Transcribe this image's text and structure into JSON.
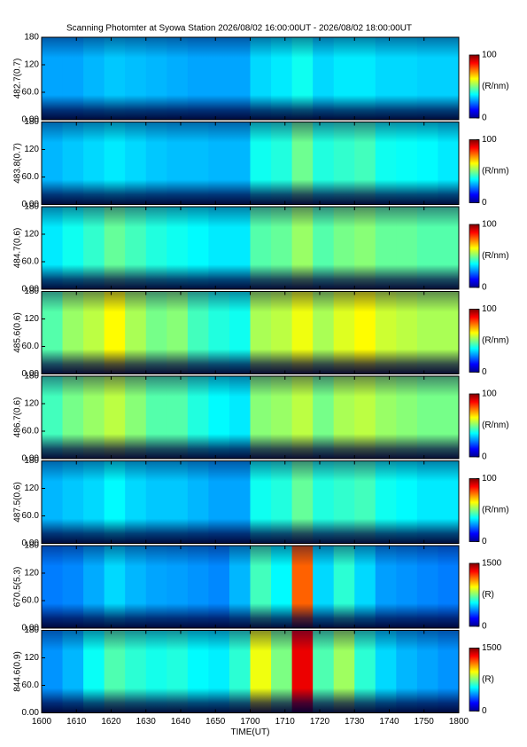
{
  "chart_data": [
    {
      "type": "heatmap",
      "title": "Scanning Photomter at Syowa Station 2026/08/02 16:00:00UT - 2026/08/02 18:00:00UT",
      "ylabel": "482.7(0.7)",
      "ylim": [
        0,
        180
      ],
      "yticks": [
        {
          "value": 0,
          "label": "0.00"
        },
        {
          "value": 60,
          "label": "60.0"
        },
        120,
        180
      ],
      "clim": [
        0,
        100
      ],
      "cticks": [
        0,
        100
      ],
      "cbar_label": "(R/nm)",
      "values": [
        22,
        22,
        24,
        26,
        25,
        24,
        23,
        22,
        22,
        22,
        28,
        30,
        34,
        28,
        30,
        30,
        28,
        28,
        27,
        27
      ]
    },
    {
      "type": "heatmap",
      "ylabel": "483.8(0.7)",
      "ylim": [
        0,
        180
      ],
      "yticks": [
        {
          "value": 0,
          "label": "0.00"
        },
        {
          "value": 60,
          "label": "60.0"
        },
        120,
        180
      ],
      "clim": [
        0,
        100
      ],
      "cticks": [
        0,
        100
      ],
      "cbar_label": "(R/nm)",
      "values": [
        24,
        26,
        28,
        30,
        28,
        26,
        25,
        25,
        24,
        24,
        34,
        36,
        45,
        36,
        38,
        40,
        34,
        33,
        32,
        30
      ]
    },
    {
      "type": "heatmap",
      "ylabel": "484.7(0.6)",
      "ylim": [
        0,
        180
      ],
      "yticks": [
        {
          "value": 0,
          "label": "0.00"
        },
        {
          "value": 60,
          "label": "60.0"
        },
        120,
        180
      ],
      "clim": [
        0,
        100
      ],
      "cticks": [
        0,
        100
      ],
      "cbar_label": "(R/nm)",
      "values": [
        30,
        34,
        38,
        44,
        40,
        36,
        34,
        32,
        30,
        30,
        42,
        44,
        50,
        42,
        46,
        48,
        44,
        44,
        42,
        42
      ]
    },
    {
      "type": "heatmap",
      "ylabel": "485.6(0.6)",
      "ylim": [
        0,
        180
      ],
      "yticks": [
        {
          "value": 0,
          "label": "0.00"
        },
        {
          "value": 60,
          "label": "60.0"
        },
        120,
        180
      ],
      "clim": [
        0,
        100
      ],
      "cticks": [
        0,
        100
      ],
      "cbar_label": "(R/nm)",
      "values": [
        42,
        50,
        54,
        62,
        52,
        46,
        48,
        40,
        36,
        34,
        52,
        54,
        60,
        52,
        58,
        62,
        56,
        54,
        52,
        52
      ]
    },
    {
      "type": "heatmap",
      "ylabel": "486.7(0.6)",
      "ylim": [
        0,
        180
      ],
      "yticks": [
        {
          "value": 0,
          "label": "0.00"
        },
        {
          "value": 60,
          "label": "60.0"
        },
        120,
        180
      ],
      "clim": [
        0,
        100
      ],
      "cticks": [
        0,
        100
      ],
      "cbar_label": "(R/nm)",
      "values": [
        40,
        46,
        50,
        54,
        48,
        42,
        42,
        36,
        32,
        30,
        48,
        50,
        54,
        46,
        52,
        54,
        50,
        48,
        46,
        46
      ]
    },
    {
      "type": "heatmap",
      "ylabel": "487.5(0.6)",
      "ylim": [
        0,
        180
      ],
      "yticks": [
        {
          "value": 0,
          "label": "0.00"
        },
        {
          "value": 60,
          "label": "60.0"
        },
        120,
        180
      ],
      "clim": [
        0,
        100
      ],
      "cticks": [
        0,
        100
      ],
      "cbar_label": "(R/nm)",
      "values": [
        24,
        26,
        28,
        32,
        28,
        26,
        26,
        24,
        22,
        22,
        34,
        36,
        44,
        36,
        38,
        40,
        34,
        32,
        30,
        30
      ]
    },
    {
      "type": "heatmap",
      "ylabel": "670.5(5.3)",
      "ylim": [
        0,
        180
      ],
      "yticks": [
        {
          "value": 0,
          "label": "0.00"
        },
        {
          "value": 60,
          "label": "60.0"
        },
        120,
        180
      ],
      "clim": [
        0,
        1500
      ],
      "cticks": [
        0,
        1500
      ],
      "cbar_label": "(R)",
      "values": [
        260,
        280,
        340,
        420,
        360,
        330,
        320,
        300,
        280,
        360,
        600,
        480,
        1200,
        420,
        560,
        420,
        320,
        300,
        280,
        260
      ]
    },
    {
      "type": "heatmap",
      "ylabel": "844.6(0.9)",
      "ylim": [
        0,
        180
      ],
      "yticks": [
        {
          "value": 0,
          "label": "0.00"
        },
        {
          "value": 60,
          "label": "60.0"
        },
        120,
        180
      ],
      "clim": [
        0,
        1500
      ],
      "cticks": [
        0,
        1500
      ],
      "cbar_label": "(R)",
      "values": [
        300,
        360,
        500,
        620,
        560,
        520,
        540,
        480,
        460,
        560,
        900,
        700,
        1400,
        620,
        760,
        560,
        420,
        360,
        330,
        300
      ],
      "xticks": [
        1600,
        1610,
        1620,
        1630,
        1640,
        1650,
        1700,
        1710,
        1720,
        1730,
        1740,
        1750,
        1800
      ],
      "xlabel": "TIME(UT)"
    }
  ]
}
